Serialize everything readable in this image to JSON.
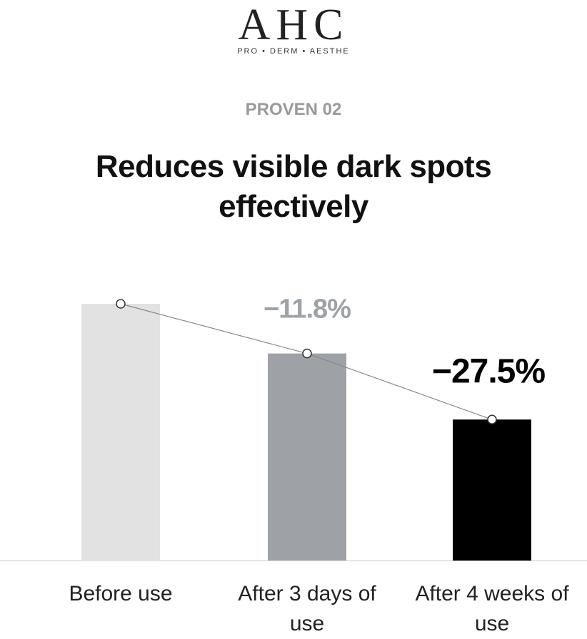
{
  "brand": "AHC",
  "tagline": "PRO • DERM • AESTHE",
  "eyebrow": "PROVEN 02",
  "chart_data": {
    "type": "bar",
    "title": "Reduces visible dark spots effectively",
    "categories": [
      "Before use",
      "After 3 days of use",
      "After 4 weeks of use"
    ],
    "values": [
      0,
      -11.8,
      -27.5
    ],
    "value_labels": [
      null,
      "−11.8%",
      "−27.5%"
    ],
    "colors": [
      "#e2e2e2",
      "#9ea1a6",
      "#000000"
    ],
    "label_colors": [
      null,
      "#9ea1a6",
      "#000000"
    ],
    "line": true,
    "ylim": [
      -61,
      0
    ]
  }
}
